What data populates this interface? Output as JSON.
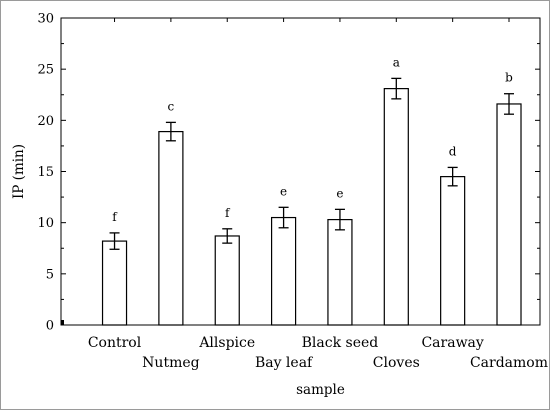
{
  "chart_data": {
    "type": "bar",
    "xlabel": "sample",
    "ylabel": "IP (min)",
    "ylim": [
      0,
      30
    ],
    "yticks": [
      "0",
      "5",
      "10",
      "15",
      "20",
      "25",
      "30"
    ],
    "grid": false,
    "categories": [
      "Control",
      "Nutmeg",
      "Allspice",
      "Bay leaf",
      "Black seed",
      "Cloves",
      "Caraway",
      "Cardamom"
    ],
    "values": [
      8.2,
      18.9,
      8.7,
      10.5,
      10.3,
      23.1,
      14.5,
      21.6
    ],
    "errors": [
      0.8,
      0.9,
      0.7,
      1.0,
      1.0,
      1.0,
      0.9,
      1.0
    ],
    "significance": [
      "f",
      "c",
      "f",
      "e",
      "e",
      "a",
      "d",
      "b"
    ],
    "colors": {
      "bar_fill": "#ffffff",
      "bar_stroke": "#000000",
      "axis": "#000000"
    }
  }
}
